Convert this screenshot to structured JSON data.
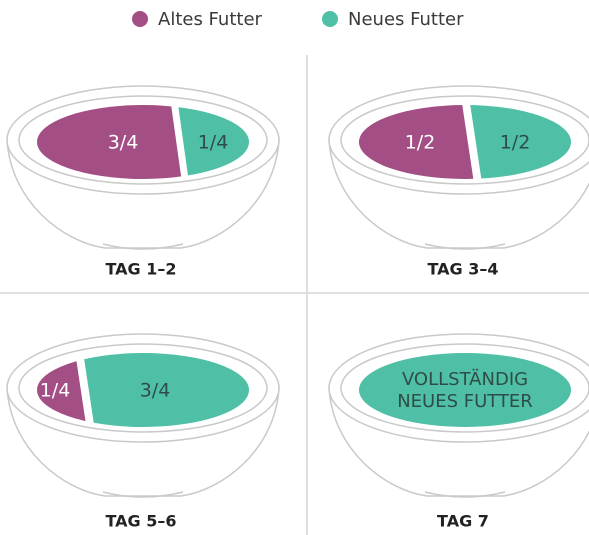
{
  "legend": [
    {
      "label": "Altes Futter",
      "color": "#a34f86"
    },
    {
      "label": "Neues Futter",
      "color": "#4fc0a6"
    }
  ],
  "panels": [
    {
      "label": "TAG 1–2",
      "portions": [
        {
          "lines": [
            "3/4"
          ],
          "color": "#a34f86"
        },
        {
          "lines": [
            "1/4"
          ],
          "color": "#4fc0a6"
        }
      ]
    },
    {
      "label": "TAG 3–4",
      "portions": [
        {
          "lines": [
            "1/2"
          ],
          "color": "#a34f86"
        },
        {
          "lines": [
            "1/2"
          ],
          "color": "#4fc0a6"
        }
      ]
    },
    {
      "label": "TAG 5–6",
      "portions": [
        {
          "lines": [
            "1/4"
          ],
          "color": "#a34f86"
        },
        {
          "lines": [
            "3/4"
          ],
          "color": "#4fc0a6"
        }
      ]
    },
    {
      "label": "TAG 7",
      "portions": [
        {
          "lines": [
            "VOLLSTÄNDIG",
            "NEUES FUTTER"
          ],
          "color": "#4fc0a6"
        }
      ]
    }
  ]
}
